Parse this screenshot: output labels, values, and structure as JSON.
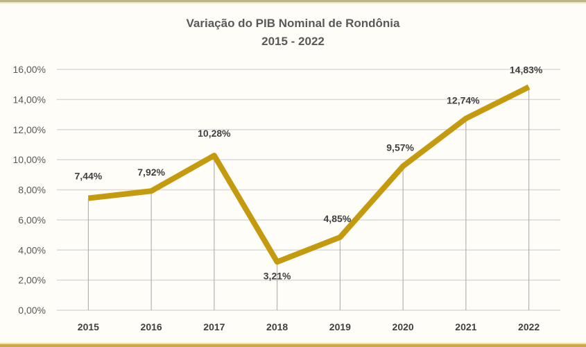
{
  "chart_data": {
    "type": "line",
    "title": "Variação do PIB Nominal de Rondônia",
    "subtitle": "2015 - 2022",
    "xlabel": "",
    "ylabel": "",
    "categories": [
      "2015",
      "2016",
      "2017",
      "2018",
      "2019",
      "2020",
      "2021",
      "2022"
    ],
    "series": [
      {
        "name": "Variação do PIB Nominal",
        "values": [
          7.44,
          7.92,
          10.28,
          3.21,
          4.85,
          9.57,
          12.74,
          14.83
        ],
        "labels": [
          "7,44%",
          "7,92%",
          "10,28%",
          "3,21%",
          "4,85%",
          "9,57%",
          "12,74%",
          "14,83%"
        ],
        "color": "#c49a0e"
      }
    ],
    "ylim": [
      0,
      16
    ],
    "yticks": [
      "0,00%",
      "2,00%",
      "4,00%",
      "6,00%",
      "8,00%",
      "10,00%",
      "12,00%",
      "14,00%",
      "16,00%"
    ],
    "grid": true,
    "drop_lines": true,
    "legend": "none"
  },
  "header": {
    "title": "Variação do PIB Nominal de Rondônia",
    "subtitle": "2015 - 2022"
  },
  "colors": {
    "line": "#c49a0e",
    "grid": "#d9d9d9",
    "drop_line": "#a6a6a6",
    "border_gold": "#c9a94a"
  }
}
